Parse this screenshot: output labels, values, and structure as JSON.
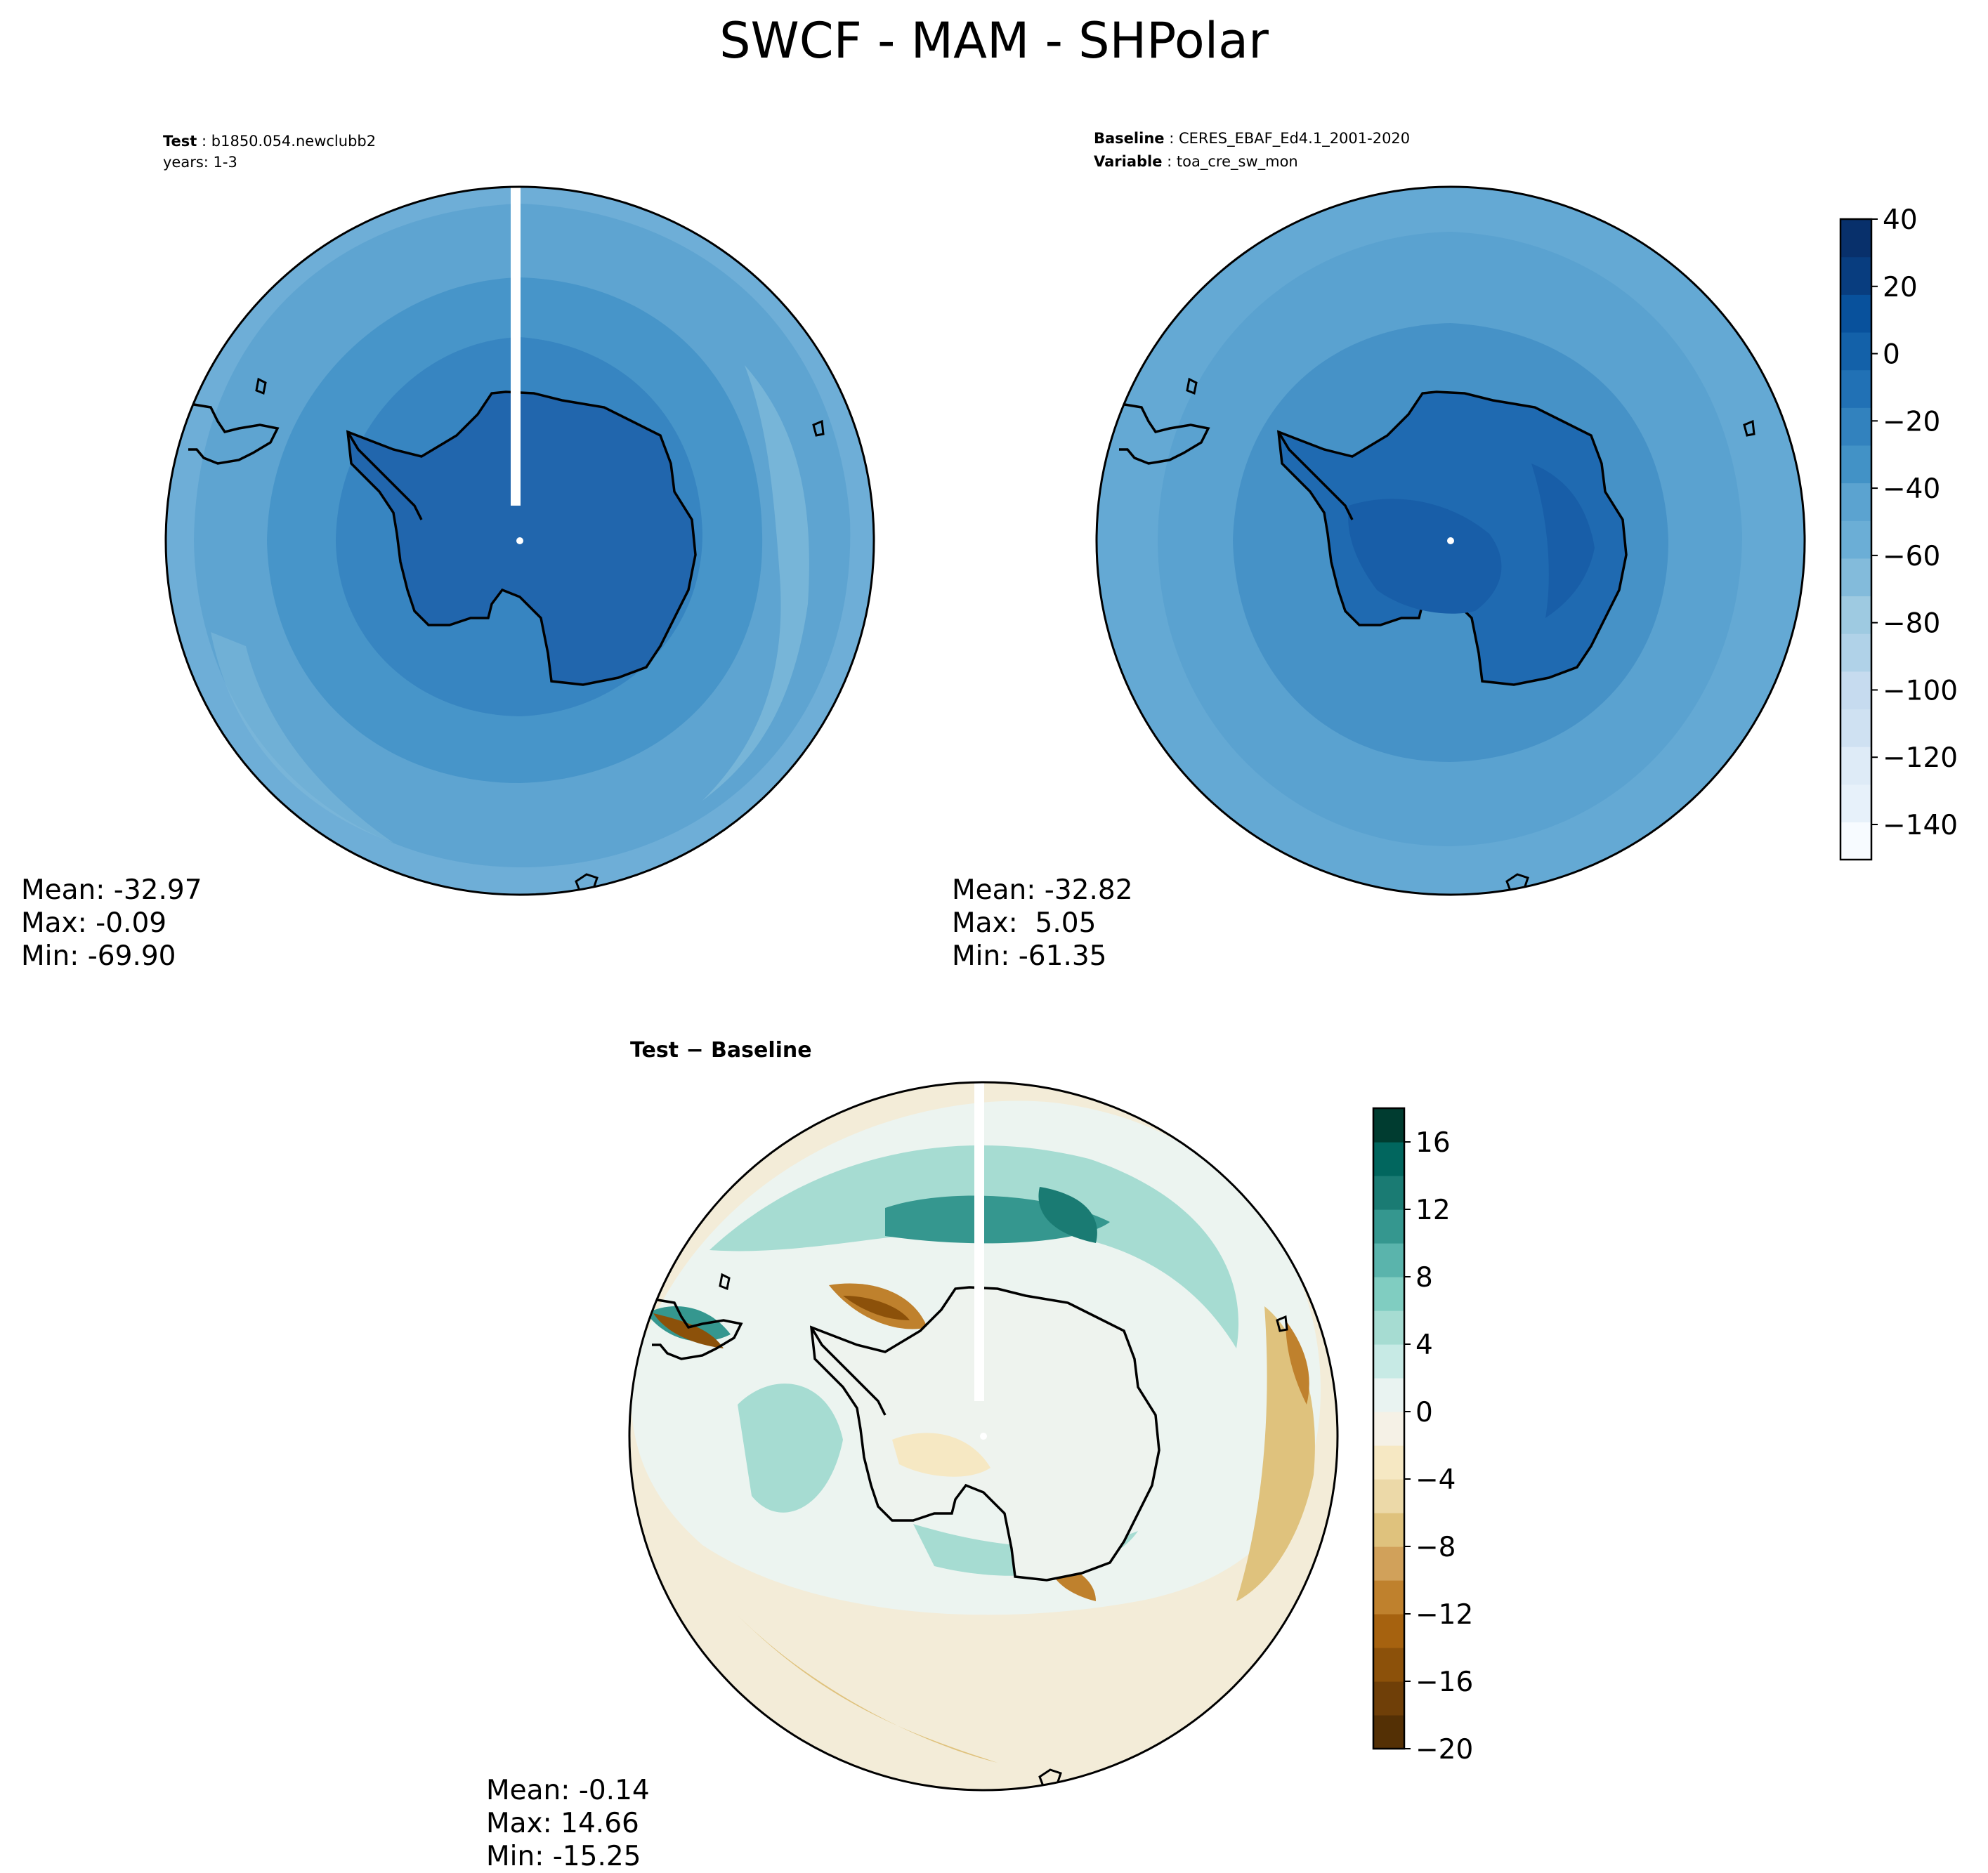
{
  "figure": {
    "title": "SWCF - MAM - SHPolar"
  },
  "panels": {
    "test": {
      "label_key": "Test",
      "label_value": "b1850.054.newclubb2",
      "line2": "years: 1-3",
      "stats": {
        "mean": "Mean: -32.97",
        "max": "Max: -0.09",
        "min": "Min: -69.90"
      }
    },
    "baseline": {
      "label_key": "Baseline",
      "label_value": "CERES_EBAF_Ed4.1_2001-2020",
      "line2_key": "Variable",
      "line2_value": "toa_cre_sw_mon",
      "stats": {
        "mean": "Mean: -32.82",
        "max": "Max:  5.05",
        "min": "Min: -61.35"
      }
    },
    "diff": {
      "label": "Test − Baseline",
      "stats": {
        "mean": "Mean: -0.14",
        "max": "Max: 14.66",
        "min": "Min: -15.25"
      }
    }
  },
  "colorbars": {
    "main": {
      "ticks": [
        "40",
        "20",
        "0",
        "−20",
        "−40",
        "−60",
        "−80",
        "−100",
        "−120",
        "−140"
      ],
      "colors": [
        "#f7fbff",
        "#e7f1fa",
        "#deebf7",
        "#cfe1f2",
        "#c6dbef",
        "#b0d2e8",
        "#9ecae1",
        "#83bbdb",
        "#6baed6",
        "#5ba3d0",
        "#4292c6",
        "#3282be",
        "#2171b5",
        "#1361a9",
        "#08519c",
        "#083d7f",
        "#08306b"
      ]
    },
    "diff": {
      "ticks": [
        "16",
        "12",
        "8",
        "4",
        "0",
        "−4",
        "−8",
        "−12",
        "−16",
        "−20"
      ],
      "colors": [
        "#543005",
        "#6f3f08",
        "#8c510a",
        "#a6620f",
        "#bf812d",
        "#d1a15a",
        "#dfc27d",
        "#ecd9a8",
        "#f6e8c3",
        "#f5f1e6",
        "#e9f3f1",
        "#c7eae5",
        "#a6dcd2",
        "#80cdc1",
        "#5ab4ac",
        "#35978f",
        "#1a7b73",
        "#01665e",
        "#003c30"
      ]
    }
  },
  "colors": {
    "test_ice": "#2166ad",
    "baseline_ice": "#1e68b0"
  }
}
